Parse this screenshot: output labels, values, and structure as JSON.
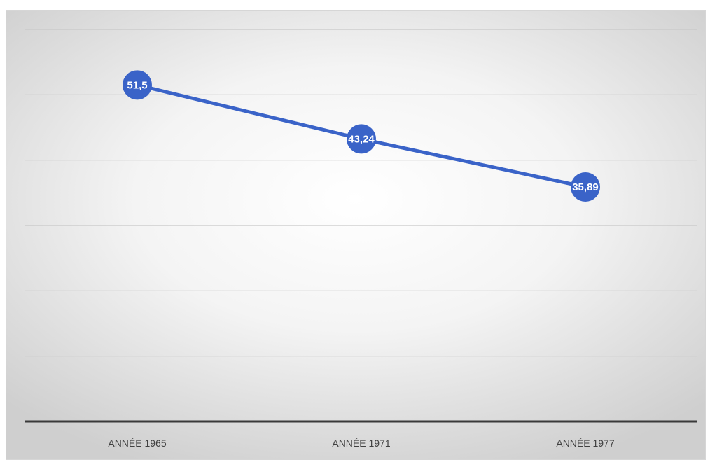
{
  "chart_data": {
    "type": "line",
    "categories": [
      "ANNÉE 1965",
      "ANNÉE 1971",
      "ANNÉE 1977"
    ],
    "series": [
      {
        "values": [
          51.5,
          43.24,
          35.89
        ]
      }
    ],
    "data_labels": [
      "51,5",
      "43,24",
      "35,89"
    ],
    "ylim": [
      0,
      60
    ],
    "grid": true,
    "legend": "none",
    "colors": {
      "line": "#3a63c8",
      "marker": "#3a63c8",
      "axis": "#3a3a3a",
      "grid": "#c8c8c8"
    }
  }
}
